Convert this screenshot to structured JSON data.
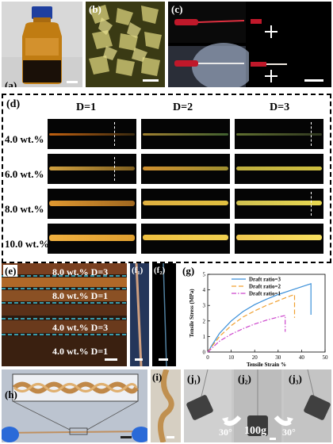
{
  "panels": {
    "a": {
      "label": "(a)"
    },
    "b": {
      "label": "(b)"
    },
    "c": {
      "label": "(c)"
    },
    "d": {
      "label": "(d)",
      "columns": [
        "D=1",
        "D=2",
        "D=3"
      ],
      "rows": [
        "4.0 wt.%",
        "6.0 wt.%",
        "8.0 wt.%",
        "10.0 wt.%"
      ]
    },
    "e": {
      "label": "(e)",
      "annotations": [
        "8.0 wt.% D=3",
        "8.0 wt.% D=1",
        "4.0 wt.% D=3",
        "4.0 wt.% D=1"
      ]
    },
    "f1": {
      "label": "(f₁)"
    },
    "f2": {
      "label": "(f₂)"
    },
    "g": {
      "label": "(g)"
    },
    "h": {
      "label": "(h)"
    },
    "i": {
      "label": "(i)"
    },
    "j1": {
      "label": "(j₁)"
    },
    "j2": {
      "label": "(j₂)",
      "weight": "100g"
    },
    "j3": {
      "label": "(j₃)"
    },
    "angle_left": "30°",
    "angle_right": "30°"
  },
  "chart_data": {
    "type": "line",
    "xlabel": "Tensile Strain %",
    "ylabel": "Tensile Stress (MPa)",
    "xlim": [
      0,
      50
    ],
    "ylim": [
      0,
      5
    ],
    "xticks": [
      0,
      10,
      20,
      30,
      40,
      50
    ],
    "yticks": [
      0,
      1,
      2,
      3,
      4,
      5
    ],
    "legend_position": "top-left",
    "series": [
      {
        "name": "Draft ratio=3",
        "color": "#3a8fd9",
        "dash": "solid",
        "points": [
          [
            0,
            0
          ],
          [
            5,
            1.2
          ],
          [
            10,
            2.0
          ],
          [
            15,
            2.6
          ],
          [
            20,
            3.05
          ],
          [
            25,
            3.4
          ],
          [
            30,
            3.7
          ],
          [
            35,
            3.95
          ],
          [
            40,
            4.2
          ],
          [
            44,
            4.4
          ],
          [
            44,
            2.4
          ]
        ]
      },
      {
        "name": "Draft ratio=2",
        "color": "#f0a030",
        "dash": "6,3",
        "points": [
          [
            0,
            0
          ],
          [
            5,
            1.0
          ],
          [
            10,
            1.7
          ],
          [
            15,
            2.25
          ],
          [
            20,
            2.65
          ],
          [
            25,
            3.0
          ],
          [
            30,
            3.3
          ],
          [
            35,
            3.6
          ],
          [
            37,
            3.7
          ],
          [
            37,
            2.2
          ]
        ]
      },
      {
        "name": "Draft ratio=1",
        "color": "#cc44cc",
        "dash": "6,2,1.5,2",
        "points": [
          [
            0,
            0
          ],
          [
            5,
            0.7
          ],
          [
            10,
            1.15
          ],
          [
            15,
            1.5
          ],
          [
            20,
            1.8
          ],
          [
            25,
            2.05
          ],
          [
            30,
            2.25
          ],
          [
            33,
            2.35
          ],
          [
            33,
            1.3
          ]
        ]
      }
    ]
  }
}
